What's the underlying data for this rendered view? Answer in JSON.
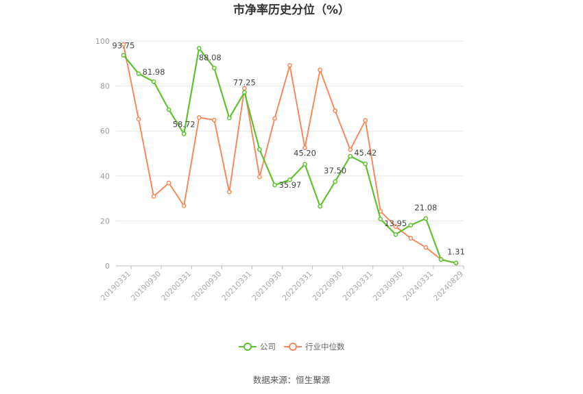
{
  "chart_data": {
    "type": "line",
    "title": "市净率历史分位（%）",
    "source": "数据来源：恒生聚源",
    "ylim": [
      0,
      100
    ],
    "yticks": [
      0,
      20,
      40,
      60,
      80,
      100
    ],
    "grid": true,
    "legend_position": "bottom",
    "x": [
      "20190331",
      "20190630",
      "20190930",
      "20191231",
      "20200331",
      "20200630",
      "20200930",
      "20201231",
      "20210331",
      "20210630",
      "20210930",
      "20211231",
      "20220331",
      "20220630",
      "20220930",
      "20221231",
      "20230331",
      "20230630",
      "20230930",
      "20231231",
      "20240331",
      "20240630",
      "20240829"
    ],
    "xtick_labels": [
      "20190331",
      "20190930",
      "20200331",
      "20200930",
      "20210331",
      "20210930",
      "20220331",
      "20220930",
      "20230331",
      "20230930",
      "20240331",
      "20240829"
    ],
    "series": [
      {
        "name": "公司",
        "color": "#5ec12f",
        "values": [
          93.75,
          85.5,
          81.98,
          69.5,
          58.72,
          96.8,
          88.08,
          65.8,
          77.25,
          51.8,
          35.97,
          38.3,
          45.2,
          26.5,
          37.5,
          48.8,
          45.42,
          20.8,
          13.95,
          18.1,
          21.08,
          2.8,
          1.31
        ]
      },
      {
        "name": "行业中位数",
        "color": "#f5895a",
        "values": [
          98.5,
          65.3,
          30.9,
          36.9,
          26.7,
          66.0,
          64.9,
          32.9,
          79.0,
          39.6,
          65.6,
          89.2,
          52.5,
          87.2,
          69.0,
          51.7,
          64.7,
          24.3,
          17.5,
          12.3,
          8.2,
          2.9,
          1.2
        ]
      }
    ],
    "data_labels": [
      {
        "series": 0,
        "index": 0,
        "text": "93.75"
      },
      {
        "series": 0,
        "index": 2,
        "text": "81.98"
      },
      {
        "series": 0,
        "index": 4,
        "text": "58.72"
      },
      {
        "series": 0,
        "index": 6,
        "text": "88.08"
      },
      {
        "series": 0,
        "index": 8,
        "text": "77.25"
      },
      {
        "series": 0,
        "index": 10,
        "text": "35.97"
      },
      {
        "series": 0,
        "index": 12,
        "text": "45.20"
      },
      {
        "series": 0,
        "index": 14,
        "text": "37.50"
      },
      {
        "series": 0,
        "index": 16,
        "text": "45.42"
      },
      {
        "series": 0,
        "index": 18,
        "text": "13.95"
      },
      {
        "series": 0,
        "index": 20,
        "text": "21.08"
      },
      {
        "series": 0,
        "index": 22,
        "text": "1.31"
      }
    ]
  }
}
